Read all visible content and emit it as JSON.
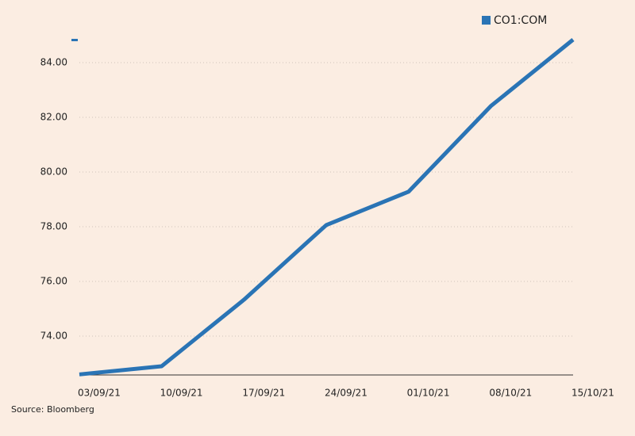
{
  "chart_data": {
    "type": "line",
    "legend_position": "top-right",
    "source": "Source: Bloomberg",
    "categories": [
      "03/09/21",
      "10/09/21",
      "17/09/21",
      "24/09/21",
      "01/10/21",
      "08/10/21",
      "15/10/21"
    ],
    "series": [
      {
        "name": "CO1:COM",
        "color": "#2a74b5",
        "values": [
          72.6,
          72.9,
          75.33,
          78.06,
          79.28,
          82.41,
          84.84
        ]
      }
    ],
    "ylim": [
      72.58,
      84.84
    ],
    "yticks": [
      {
        "value": 74,
        "label": "74.00"
      },
      {
        "value": 76,
        "label": "76.00"
      },
      {
        "value": 78,
        "label": "78.00"
      },
      {
        "value": 80,
        "label": "80.00"
      },
      {
        "value": 82,
        "label": "82.00"
      },
      {
        "value": 84,
        "label": "84.00"
      }
    ],
    "grid": true
  }
}
